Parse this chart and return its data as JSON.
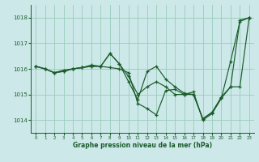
{
  "title": "Graphe pression niveau de la mer (hPa)",
  "bg_color": "#cce8e8",
  "grid_color": "#99ccbb",
  "line_color": "#1a5c2a",
  "xlim": [
    -0.5,
    23.5
  ],
  "ylim": [
    1013.5,
    1018.5
  ],
  "yticks": [
    1014,
    1015,
    1016,
    1017,
    1018
  ],
  "xticks": [
    0,
    1,
    2,
    3,
    4,
    5,
    6,
    7,
    8,
    9,
    10,
    11,
    12,
    13,
    14,
    15,
    16,
    17,
    18,
    19,
    20,
    21,
    22,
    23
  ],
  "series": [
    {
      "x": [
        0,
        1,
        2,
        3,
        4,
        5,
        6,
        7,
        8,
        9,
        10,
        11,
        12,
        13,
        14,
        15,
        16,
        17,
        18,
        19,
        20,
        21,
        22,
        23
      ],
      "y": [
        1016.1,
        1016.0,
        1015.85,
        1015.9,
        1016.0,
        1016.05,
        1016.1,
        1016.1,
        1016.6,
        1016.2,
        1015.7,
        1015.0,
        1015.3,
        1015.5,
        1015.3,
        1015.0,
        1015.0,
        1015.0,
        1014.05,
        1014.3,
        1014.85,
        1015.3,
        1017.9,
        1018.0
      ]
    },
    {
      "x": [
        0,
        1,
        2,
        3,
        4,
        5,
        6,
        7,
        8,
        9,
        10,
        11,
        12,
        13,
        14,
        15,
        16,
        17,
        18,
        19,
        20,
        21,
        22,
        23
      ],
      "y": [
        1016.1,
        1016.0,
        1015.85,
        1015.9,
        1016.0,
        1016.05,
        1016.15,
        1016.1,
        1016.6,
        1016.2,
        1015.5,
        1014.8,
        1015.9,
        1016.1,
        1015.6,
        1015.3,
        1015.05,
        1015.0,
        1014.05,
        1014.3,
        1014.9,
        1015.3,
        1015.3,
        1018.0
      ]
    },
    {
      "x": [
        0,
        1,
        2,
        3,
        4,
        5,
        6,
        7,
        8,
        9,
        10,
        11,
        12,
        13,
        14,
        15,
        16,
        17,
        18,
        19,
        20,
        21,
        22,
        23
      ],
      "y": [
        1016.1,
        1016.0,
        1015.85,
        1015.95,
        1016.0,
        1016.05,
        1016.1,
        1016.1,
        1016.05,
        1016.0,
        1015.85,
        1014.65,
        1014.45,
        1014.2,
        1015.15,
        1015.2,
        1015.0,
        1015.1,
        1014.0,
        1014.25,
        1014.85,
        1016.3,
        1017.85,
        1018.0
      ]
    }
  ]
}
